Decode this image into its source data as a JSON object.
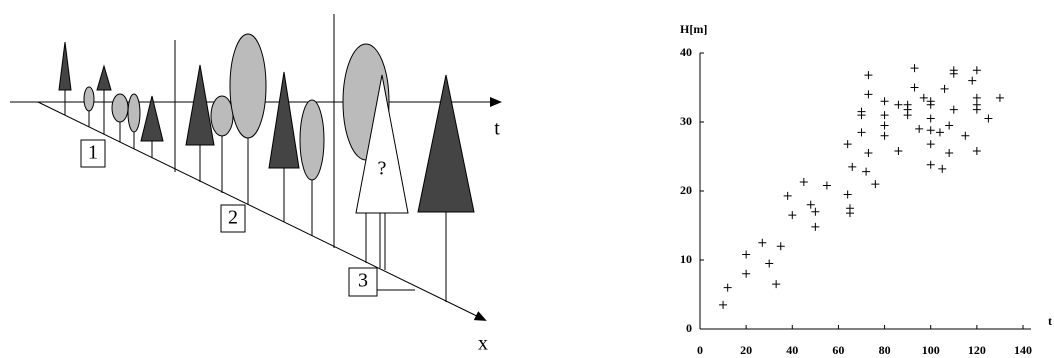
{
  "diagram": {
    "axis_t": "t",
    "axis_x": "x",
    "box_1": "1",
    "box_2": "2",
    "box_3": "3",
    "question": "?"
  },
  "chart_data": {
    "type": "scatter",
    "y_label": "H[m]",
    "x_label": "t",
    "color": "#000000",
    "xlim": [
      0,
      140
    ],
    "ylim": [
      0,
      40
    ],
    "xticks": [
      0,
      20,
      40,
      60,
      80,
      100,
      120,
      140
    ],
    "yticks": [
      0,
      10,
      20,
      30,
      40
    ],
    "x": [
      10,
      12,
      20,
      20,
      27,
      30,
      33,
      35,
      38,
      40,
      45,
      48,
      50,
      50,
      55,
      64,
      64,
      65,
      65,
      66,
      70,
      70,
      70,
      72,
      73,
      73,
      73,
      76,
      80,
      80,
      80,
      80,
      86,
      86,
      90,
      90,
      90,
      93,
      93,
      95,
      97,
      100,
      100,
      100,
      100,
      100,
      100,
      104,
      105,
      106,
      108,
      108,
      110,
      110,
      110,
      115,
      118,
      120,
      120,
      120,
      120,
      120,
      125,
      130
    ],
    "values": [
      3.5,
      6,
      8,
      10.8,
      12.5,
      9.5,
      6.5,
      12,
      19.3,
      16.5,
      21.3,
      18,
      17,
      14.8,
      20.8,
      26.8,
      19.5,
      16.8,
      17.5,
      23.5,
      28.5,
      31,
      31.5,
      22.8,
      25.5,
      34,
      36.8,
      21,
      28,
      29.5,
      31,
      33,
      25.8,
      32.5,
      31,
      31.8,
      32.5,
      35,
      37.8,
      29,
      33.5,
      26.8,
      28.8,
      30.5,
      32.5,
      33,
      23.8,
      28.5,
      23.2,
      34.8,
      25.5,
      29.5,
      31.8,
      37,
      37.5,
      28,
      36,
      25.8,
      31.8,
      32.5,
      33.5,
      37.5,
      30.5,
      33.5
    ]
  }
}
